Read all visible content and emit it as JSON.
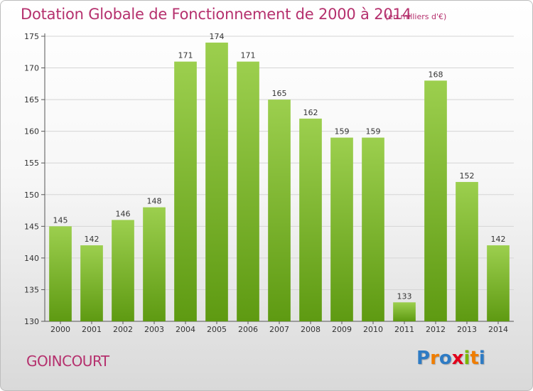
{
  "header": {
    "title": "Dotation Globale de Fonctionnement de 2000 à 2014",
    "unit": "(en milliers d'€)"
  },
  "footer": {
    "commune": "GOINCOURT",
    "logo_text": "Proxiti",
    "logo_letters": [
      {
        "char": "P",
        "color": "#2e7bc4"
      },
      {
        "char": "r",
        "color": "#f07d00"
      },
      {
        "char": "o",
        "color": "#2e7bc4"
      },
      {
        "char": "x",
        "color": "#e2001a"
      },
      {
        "char": "i",
        "color": "#7ab800"
      },
      {
        "char": "t",
        "color": "#f07d00"
      },
      {
        "char": "i",
        "color": "#2e7bc4"
      }
    ]
  },
  "colors": {
    "bar_top": "#9ccf4e",
    "bar_bottom": "#5e9a12",
    "text_accent": "#b5306d",
    "grid": "#d5d5d5"
  },
  "chart_data": {
    "type": "bar",
    "title": "Dotation Globale de Fonctionnement de 2000 à 2014",
    "subtitle": "(en milliers d'€)",
    "categories": [
      "2000",
      "2001",
      "2002",
      "2003",
      "2004",
      "2005",
      "2006",
      "2007",
      "2008",
      "2009",
      "2010",
      "2011",
      "2012",
      "2013",
      "2014"
    ],
    "values": [
      145,
      142,
      146,
      148,
      171,
      174,
      171,
      165,
      162,
      159,
      159,
      133,
      168,
      152,
      142
    ],
    "ylim": [
      130,
      175
    ],
    "yticks": [
      130,
      135,
      140,
      145,
      150,
      155,
      160,
      165,
      170,
      175
    ],
    "grid": true,
    "legend": "none"
  }
}
